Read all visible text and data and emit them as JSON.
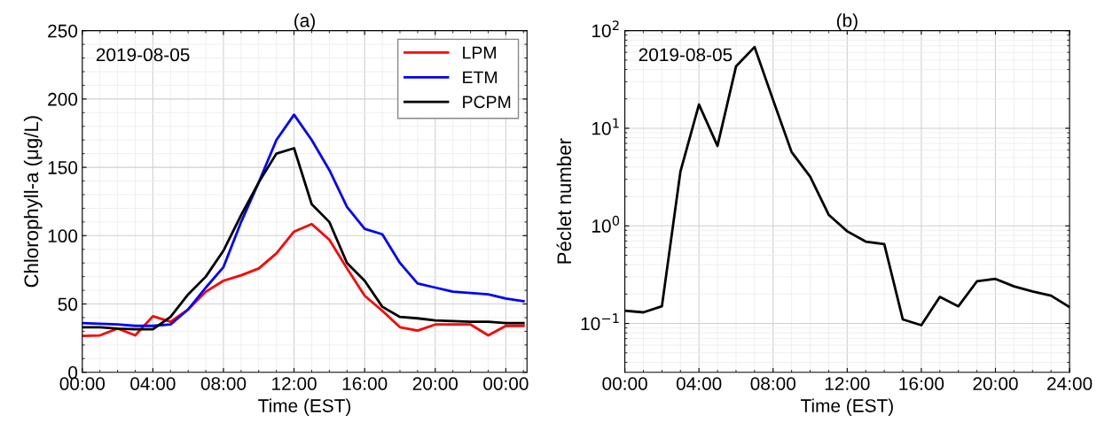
{
  "chart_data": [
    {
      "type": "line",
      "title": "(a)",
      "xlabel": "Time (EST)",
      "ylabel": "Chlorophyll-a (μg/L)",
      "annotations": [
        "2019-08-05"
      ],
      "x": [
        0,
        1,
        2,
        3,
        4,
        5,
        6,
        7,
        8,
        9,
        10,
        11,
        12,
        13,
        14,
        15,
        16,
        17,
        18,
        19,
        20,
        21,
        22,
        23,
        24,
        25
      ],
      "series": [
        {
          "name": "LPM",
          "color": "#ff0000",
          "values": [
            26.6,
            27,
            32,
            27,
            41,
            37,
            46,
            59,
            67,
            71,
            76,
            87,
            103,
            108.5,
            97,
            76,
            56,
            45,
            33,
            30.5,
            35,
            35,
            35,
            27,
            34,
            34
          ]
        },
        {
          "name": "ETM",
          "color": "#0000ff",
          "values": [
            36,
            35.6,
            35,
            34,
            34,
            35,
            46,
            62,
            77,
            110,
            139,
            170,
            188.5,
            170,
            148,
            121,
            105,
            101,
            80,
            65,
            62,
            59,
            58,
            57,
            54,
            52
          ]
        },
        {
          "name": "PCPM",
          "color": "#000000",
          "values": [
            33,
            33,
            32,
            31.5,
            31.5,
            40.5,
            57,
            70,
            89,
            115,
            139,
            160,
            164,
            123,
            110,
            80,
            67,
            48,
            40.5,
            39.5,
            38,
            37.5,
            37,
            37,
            36,
            36
          ]
        }
      ],
      "xlim": [
        0,
        25.2
      ],
      "ylim": [
        0,
        250
      ],
      "xticks": [
        {
          "value": 0,
          "label": "00:00"
        },
        {
          "value": 4,
          "label": "04:00"
        },
        {
          "value": 8,
          "label": "08:00"
        },
        {
          "value": 12,
          "label": "12:00"
        },
        {
          "value": 16,
          "label": "16:00"
        },
        {
          "value": 20,
          "label": "20:00"
        },
        {
          "value": 24,
          "label": "00:00"
        }
      ],
      "yticks": [
        0,
        50,
        100,
        150,
        200,
        250
      ],
      "grid": true,
      "legend": "top right",
      "marker": "none",
      "line_style": "solid"
    },
    {
      "type": "line",
      "title": "(b)",
      "xlabel": "Time (EST)",
      "ylabel": "Péclet number",
      "annotations": [
        "2019-08-05"
      ],
      "x": [
        0,
        1,
        2,
        3,
        4,
        5,
        6,
        7,
        8,
        9,
        10,
        11,
        12,
        13,
        14,
        15,
        16,
        17,
        18,
        19,
        20,
        21,
        22,
        23,
        24
      ],
      "series": [
        {
          "color": "#000000",
          "values": [
            0.135,
            0.13,
            0.15,
            3.6,
            17.5,
            6.6,
            43,
            68,
            19.5,
            5.7,
            3.2,
            1.3,
            0.88,
            0.69,
            0.65,
            0.11,
            0.096,
            0.187,
            0.15,
            0.27,
            0.286,
            0.24,
            0.213,
            0.193,
            0.147
          ]
        }
      ],
      "log": "y",
      "xlim": [
        0,
        24
      ],
      "ylim": [
        0.0316,
        100
      ],
      "xticks": [
        {
          "value": 0,
          "label": "00:00"
        },
        {
          "value": 4,
          "label": "04:00"
        },
        {
          "value": 8,
          "label": "08:00"
        },
        {
          "value": 12,
          "label": "12:00"
        },
        {
          "value": 16,
          "label": "16:00"
        },
        {
          "value": 20,
          "label": "20:00"
        },
        {
          "value": 24,
          "label": "24:00"
        }
      ],
      "yticks": [
        {
          "value": 0.1,
          "label": "10$^{−1}$"
        },
        {
          "value": 1,
          "label": "10$^{0}$"
        },
        {
          "value": 10,
          "label": "10$^{1}$"
        },
        {
          "value": 100,
          "label": "10$^{2}$"
        }
      ],
      "grid": true,
      "legend": false,
      "marker": "none",
      "line_style": "solid"
    }
  ]
}
